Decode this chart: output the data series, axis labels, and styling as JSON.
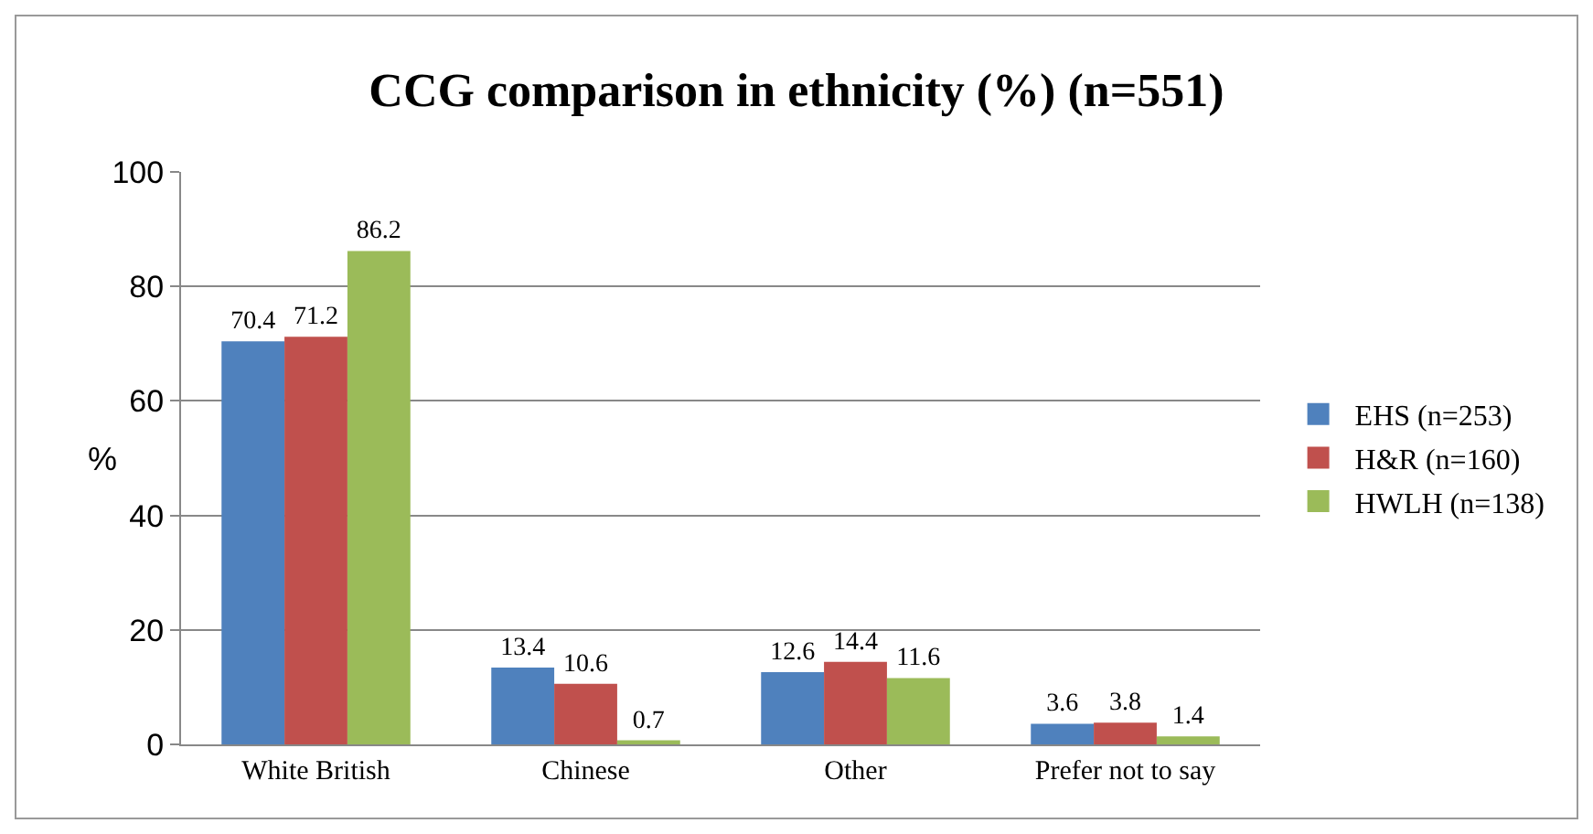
{
  "chart_data": {
    "type": "bar",
    "title": "CCG comparison in ethnicity (%) (n=551)",
    "ylabel": "%",
    "categories": [
      "White British",
      "Chinese",
      "Other",
      "Prefer not to say"
    ],
    "series": [
      {
        "name": "EHS (n=253)",
        "color": "#4f81bd",
        "values": [
          70.4,
          13.4,
          12.6,
          3.6
        ]
      },
      {
        "name": "H&R (n=160)",
        "color": "#c0504d",
        "values": [
          71.2,
          10.6,
          14.4,
          3.8
        ]
      },
      {
        "name": "HWLH (n=138)",
        "color": "#9bbb59",
        "values": [
          86.2,
          0.7,
          11.6,
          1.4
        ]
      }
    ],
    "ylim": [
      0,
      100
    ],
    "yticks": [
      0,
      20,
      40,
      60,
      80,
      100
    ],
    "grid": "y",
    "legend": "right",
    "data_labels": true
  }
}
